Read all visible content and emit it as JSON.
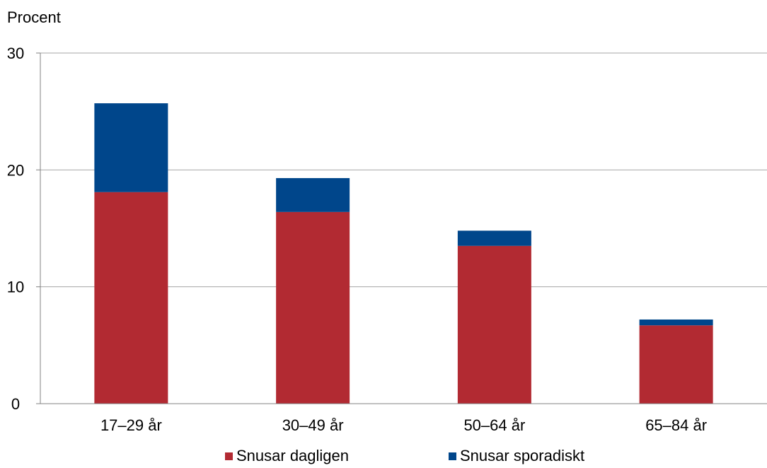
{
  "chart_data": {
    "type": "bar",
    "stacked": true,
    "ylabel": "Procent",
    "ylim": [
      0,
      30
    ],
    "yticks": [
      0,
      10,
      20,
      30
    ],
    "grid": true,
    "legend_position": "bottom",
    "categories": [
      "17–29 år",
      "30–49 år",
      "50–64 år",
      "65–84 år"
    ],
    "series": [
      {
        "name": "Snusar dagligen",
        "color": "#b22a32",
        "values": [
          18.1,
          16.4,
          13.5,
          6.7
        ]
      },
      {
        "name": "Snusar sporadiskt",
        "color": "#00468b",
        "values": [
          7.6,
          2.9,
          1.3,
          0.5
        ]
      }
    ]
  }
}
